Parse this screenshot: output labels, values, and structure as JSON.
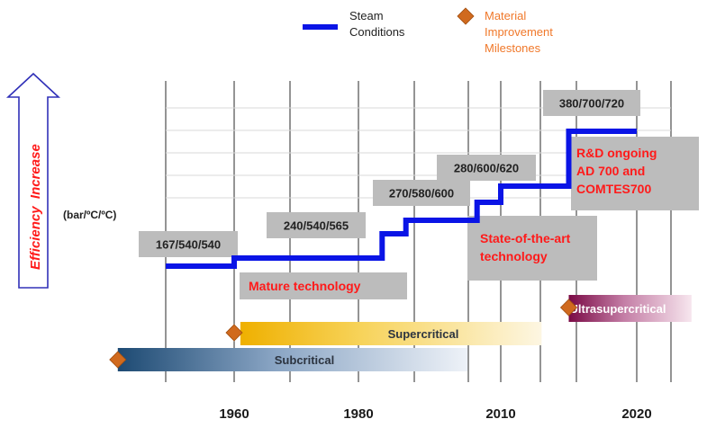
{
  "chart_data": {
    "type": "line",
    "legend": {
      "position": "top",
      "items": [
        {
          "label_lines": [
            "Steam",
            "Conditions"
          ],
          "color": "#0a14e6",
          "marker": "line"
        },
        {
          "label_lines": [
            "Material",
            "Improvement",
            "Milestones"
          ],
          "color": "#f0782a",
          "marker": "diamond"
        }
      ]
    },
    "y_axis_arrow_label": "Efficiency  Increase",
    "unit_label": "(bar/ºC/ºC)",
    "x_ticks": [
      1960,
      1980,
      2010,
      2020
    ],
    "grid": "vertical",
    "series": [
      {
        "points": [
          [
            1950,
            167
          ],
          [
            1960,
            167
          ],
          [
            1960,
            240
          ],
          [
            1985,
            240
          ],
          [
            1985,
            270
          ],
          [
            1990,
            270
          ],
          [
            1990,
            280
          ],
          [
            2005,
            280
          ],
          [
            2005,
            290
          ],
          [
            2010,
            290
          ],
          [
            2010,
            300
          ],
          [
            2015,
            300
          ],
          [
            2015,
            380
          ],
          [
            2020,
            380
          ]
        ]
      }
    ],
    "condition_labels": [
      "167/540/540",
      "240/540/565",
      "270/580/600",
      "280/600/620",
      "380/700/720"
    ],
    "annotations": [
      {
        "lines": [
          "Mature technology"
        ],
        "color": "#ff1a1a"
      },
      {
        "lines": [
          "State-of-the-art",
          "technology"
        ],
        "color": "#ff1a1a"
      },
      {
        "lines": [
          "R&D ongoing",
          "AD 700 and",
          "COMTES700"
        ],
        "color": "#ff1a1a"
      }
    ],
    "technology_bands": [
      {
        "name": "Subcritical",
        "start": 1943,
        "end": 2003,
        "milestone": 1943
      },
      {
        "name": "Supercritical",
        "start": 1961,
        "end": 2013,
        "milestone": 1960
      },
      {
        "name": "Ultrasupercritical",
        "start": 2015,
        "end": 2028,
        "milestone": 2015
      }
    ]
  }
}
